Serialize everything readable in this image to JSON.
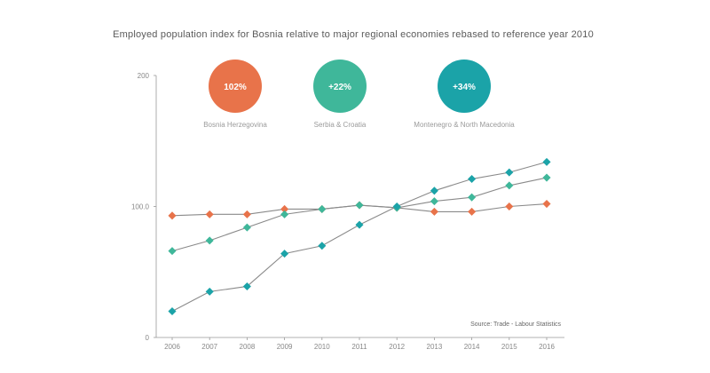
{
  "chart_data": {
    "type": "line",
    "title": "Employed population index for Bosnia relative to major regional economies rebased to reference year 2010",
    "xlabel": "",
    "ylabel": "",
    "x": [
      "2006",
      "2007",
      "2008",
      "2009",
      "2010",
      "2011",
      "2012",
      "2013",
      "2014",
      "2015",
      "2016"
    ],
    "ylim": [
      0,
      200
    ],
    "yticks": [
      {
        "value": 0,
        "label": "0"
      },
      {
        "value": 100,
        "label": "100.0"
      },
      {
        "value": 200,
        "label": "200"
      }
    ],
    "grid": false,
    "series": [
      {
        "name": "Bosnia Herzegovina",
        "color": "#e8734a",
        "values": [
          93,
          94,
          94,
          98,
          98,
          101,
          99,
          96,
          96,
          100,
          102
        ]
      },
      {
        "name": "Serbia & Croatia",
        "color": "#3fb79a",
        "values": [
          66,
          74,
          84,
          94,
          98,
          101,
          99,
          104,
          107,
          116,
          122
        ]
      },
      {
        "name": "Montenegro & North Macedonia",
        "color": "#1ba3a8",
        "values": [
          20,
          35,
          39,
          64,
          70,
          86,
          100,
          112,
          121,
          126,
          134
        ]
      }
    ],
    "bubbles": [
      {
        "value": "102%",
        "color": "#e8734a"
      },
      {
        "value": "+22%",
        "color": "#3fb79a"
      },
      {
        "value": "+34%",
        "color": "#1ba3a8"
      }
    ],
    "source": "Source: Trade - Labour Statistics"
  }
}
